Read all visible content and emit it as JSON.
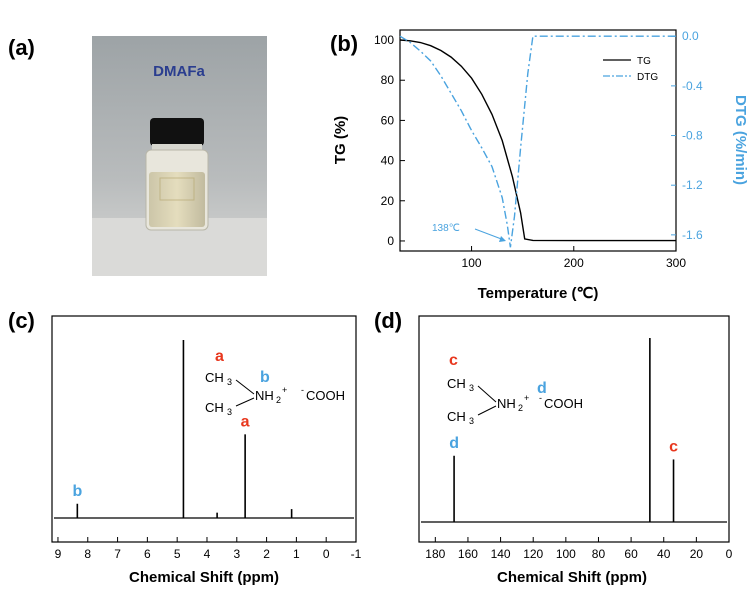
{
  "panels": {
    "a": {
      "label": "(a)",
      "photo_caption": "DMAFa"
    },
    "b": {
      "label": "(b)"
    },
    "c": {
      "label": "(c)"
    },
    "d": {
      "label": "(d)"
    }
  },
  "colors": {
    "blue": "#4aa3df",
    "red": "#e8371e",
    "black": "#000000"
  },
  "chart_data": [
    {
      "id": "b",
      "type": "line",
      "title": "",
      "xlabel": "Temperature (℃)",
      "ylabel": "TG (%)",
      "y2label": "DTG (%/min)",
      "xlim": [
        30,
        300
      ],
      "ylim": [
        -5,
        105
      ],
      "y2lim": [
        -1.73,
        0.05
      ],
      "xticks": [
        "100",
        "200",
        "300"
      ],
      "yticks": [
        "0",
        "20",
        "40",
        "60",
        "80",
        "100"
      ],
      "y2ticks": [
        "0.0",
        "-0.4",
        "-0.8",
        "-1.2",
        "-1.6"
      ],
      "legend": [
        "TG",
        "DTG"
      ],
      "legend_position": "top-right",
      "annotation": "138℃",
      "series": [
        {
          "name": "TG",
          "axis": "left",
          "style": "solid",
          "x": [
            30,
            40,
            50,
            60,
            70,
            80,
            90,
            100,
            110,
            120,
            130,
            140,
            148,
            152,
            160,
            200,
            250,
            300
          ],
          "y": [
            100,
            99.6,
            98.8,
            97.2,
            94.8,
            91.5,
            87,
            81,
            73,
            63,
            50,
            32,
            14,
            1,
            0.3,
            0.2,
            0.2,
            0.2
          ]
        },
        {
          "name": "DTG",
          "axis": "right",
          "style": "dashdot",
          "x": [
            30,
            40,
            50,
            60,
            70,
            80,
            90,
            100,
            110,
            120,
            130,
            135,
            138,
            142,
            148,
            155,
            160,
            200,
            250,
            300
          ],
          "y": [
            0,
            -0.05,
            -0.12,
            -0.2,
            -0.32,
            -0.46,
            -0.6,
            -0.76,
            -0.9,
            -1.05,
            -1.3,
            -1.52,
            -1.7,
            -1.45,
            -0.9,
            -0.3,
            0,
            0,
            0,
            0
          ]
        }
      ]
    },
    {
      "id": "c",
      "type": "line",
      "title": "",
      "xlabel": "Chemical Shift (ppm)",
      "ylabel": "",
      "xlim": [
        9.2,
        -1.0
      ],
      "xticks": [
        "9",
        "8",
        "7",
        "6",
        "5",
        "4",
        "3",
        "2",
        "1",
        "0",
        "-1"
      ],
      "peaks": [
        {
          "shift": 8.35,
          "intensity": 0.08,
          "label": "b"
        },
        {
          "shift": 4.79,
          "intensity": 1.0,
          "label": ""
        },
        {
          "shift": 3.66,
          "intensity": 0.03,
          "label": ""
        },
        {
          "shift": 2.72,
          "intensity": 0.47,
          "label": "a"
        },
        {
          "shift": 1.16,
          "intensity": 0.05,
          "label": ""
        }
      ],
      "structure": {
        "methyl_top": "CH",
        "methyl_bottom": "CH",
        "sub3": "3",
        "amine": "NH",
        "sub2": "2",
        "charge": "+",
        "anion": "COOH",
        "anion_charge": "-",
        "label_methyl": "a",
        "label_amine": "b"
      }
    },
    {
      "id": "d",
      "type": "line",
      "title": "",
      "xlabel": "Chemical Shift (ppm)",
      "ylabel": "",
      "xlim": [
        190,
        0
      ],
      "xticks": [
        "180",
        "160",
        "140",
        "120",
        "100",
        "80",
        "60",
        "40",
        "20",
        "0"
      ],
      "peaks": [
        {
          "shift": 168.5,
          "intensity": 0.36,
          "label": "d"
        },
        {
          "shift": 48.5,
          "intensity": 1.0,
          "label": ""
        },
        {
          "shift": 34.0,
          "intensity": 0.34,
          "label": "c"
        }
      ],
      "structure": {
        "methyl_top": "CH",
        "methyl_bottom": "CH",
        "sub3": "3",
        "amine": "NH",
        "sub2": "2",
        "charge": "+",
        "anion": "COOH",
        "anion_charge": "-",
        "label_methyl": "c",
        "label_carboxyl": "d"
      }
    }
  ]
}
